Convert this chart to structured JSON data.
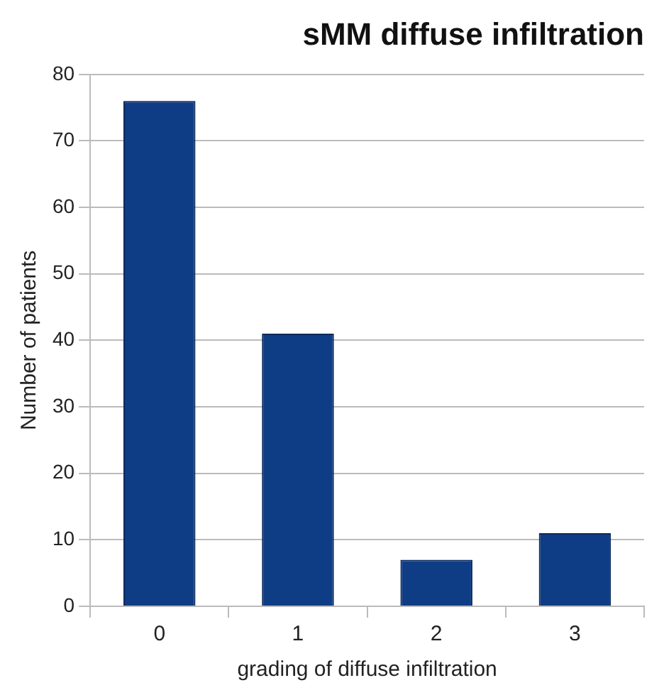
{
  "chart_data": {
    "type": "bar",
    "title": "sMM diffuse infiltration",
    "xlabel": "grading of diffuse infiltration",
    "ylabel": "Number of patients",
    "categories": [
      "0",
      "1",
      "2",
      "3"
    ],
    "values": [
      76,
      41,
      7,
      11
    ],
    "color": "#0e3d85",
    "ylim": [
      0,
      80
    ],
    "yticks": [
      0,
      10,
      20,
      30,
      40,
      50,
      60,
      70,
      80
    ],
    "grid": "y",
    "legend": false
  }
}
